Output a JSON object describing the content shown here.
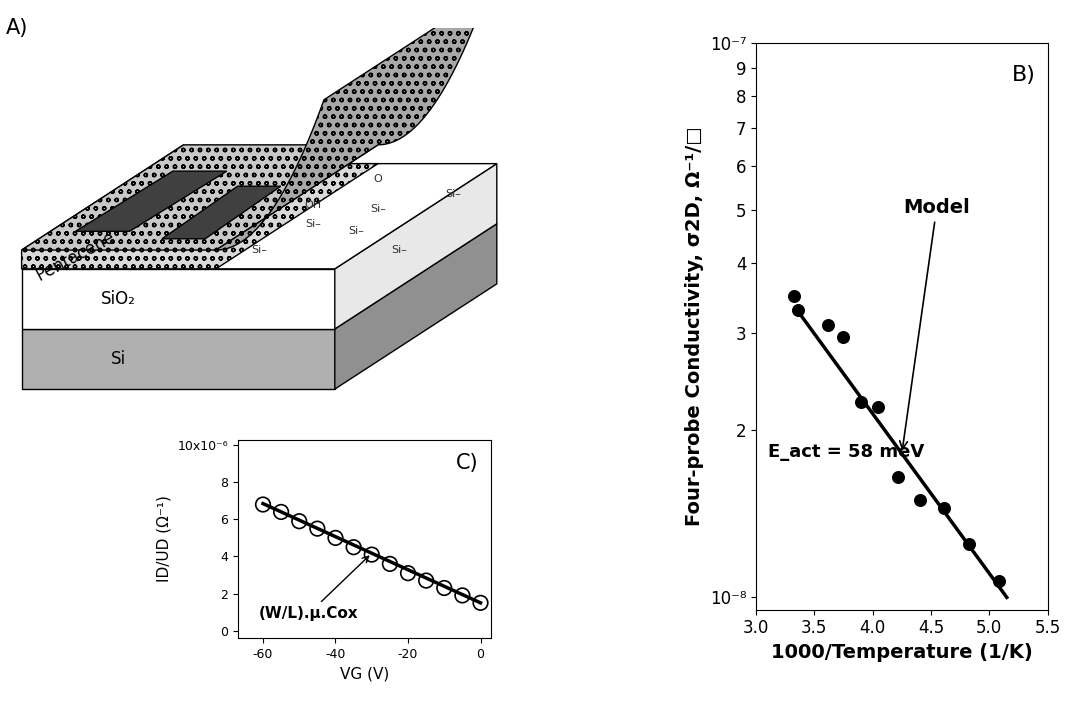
{
  "diagram": {
    "label": "A)",
    "layers": [
      "Pentacene",
      "SiO₂",
      "Si"
    ],
    "surface_labels": [
      "OH",
      "Si–",
      "Si–",
      "Si–",
      "Si–",
      "Si–",
      "Si–",
      "O"
    ]
  },
  "chart_data": [
    {
      "type": "scatter",
      "panel": "B)",
      "log": "y",
      "x_label": "1000/Temperature (1/K)",
      "y_label": "Four-probe Conductivity, σ2D, Ω⁻¹/□",
      "annotations": [
        "Model",
        "E_act = 58 meV"
      ],
      "xlim": [
        3.0,
        5.5
      ],
      "xticks": [
        3.0,
        3.5,
        4.0,
        4.5,
        5.0,
        5.5
      ],
      "ylim": [
        9.5e-09,
        1e-07
      ],
      "yticks": [
        {
          "value": 1e-08,
          "label": "10⁻⁸"
        },
        {
          "value": 2e-08,
          "label": "2"
        },
        {
          "value": 3e-08,
          "label": "3"
        },
        {
          "value": 4e-08,
          "label": "4"
        },
        {
          "value": 5e-08,
          "label": "5"
        },
        {
          "value": 6e-08,
          "label": "6"
        },
        {
          "value": 7e-08,
          "label": "7"
        },
        {
          "value": 8e-08,
          "label": "8"
        },
        {
          "value": 9e-08,
          "label": "9"
        },
        {
          "value": 1e-07,
          "label": "10⁻⁷"
        }
      ],
      "series": [
        {
          "type": "scatter",
          "marker": "filled circle",
          "color": "#000000",
          "x": [
            3.33,
            3.36,
            3.62,
            3.75,
            3.9,
            4.05,
            4.22,
            4.41,
            4.61,
            4.83,
            5.08
          ],
          "values": [
            3.5e-08,
            3.3e-08,
            3.1e-08,
            2.95e-08,
            2.25e-08,
            2.2e-08,
            1.65e-08,
            1.5e-08,
            1.45e-08,
            1.25e-08,
            1.07e-08
          ]
        },
        {
          "type": "line",
          "line_style": "solid",
          "color": "#000000",
          "x": [
            3.35,
            5.15
          ],
          "values": [
            3.3e-08,
            1e-08
          ]
        }
      ]
    },
    {
      "type": "scatter",
      "panel": "C)",
      "x_label": "VG (V)",
      "y_label": "ID/UD (Ω⁻¹)",
      "annotations": [
        "(W/L).μ.Cox"
      ],
      "xlim": [
        -67,
        3
      ],
      "xticks": [
        -60,
        -40,
        -20,
        0
      ],
      "ylim": [
        -4e-07,
        1.03e-05
      ],
      "yticks": [
        {
          "value": 0,
          "label": "0"
        },
        {
          "value": 2e-06,
          "label": "2"
        },
        {
          "value": 4e-06,
          "label": "4"
        },
        {
          "value": 6e-06,
          "label": "6"
        },
        {
          "value": 8e-06,
          "label": "8"
        },
        {
          "value": 1e-05,
          "label": "10x10⁻⁶"
        }
      ],
      "series": [
        {
          "type": "scatter",
          "marker": "open circle",
          "color": "#000000",
          "x": [
            -60,
            -55,
            -50,
            -45,
            -40,
            -35,
            -30,
            -25,
            -20,
            -15,
            -10,
            -5,
            0
          ],
          "values": [
            6.8e-06,
            6.4e-06,
            5.9e-06,
            5.5e-06,
            5e-06,
            4.5e-06,
            4.1e-06,
            3.6e-06,
            3.1e-06,
            2.7e-06,
            2.3e-06,
            1.9e-06,
            1.5e-06
          ]
        },
        {
          "type": "line",
          "line_style": "solid",
          "color": "#000000",
          "x": [
            -60,
            0
          ],
          "values": [
            6.85e-06,
            1.5e-06
          ]
        }
      ]
    }
  ]
}
